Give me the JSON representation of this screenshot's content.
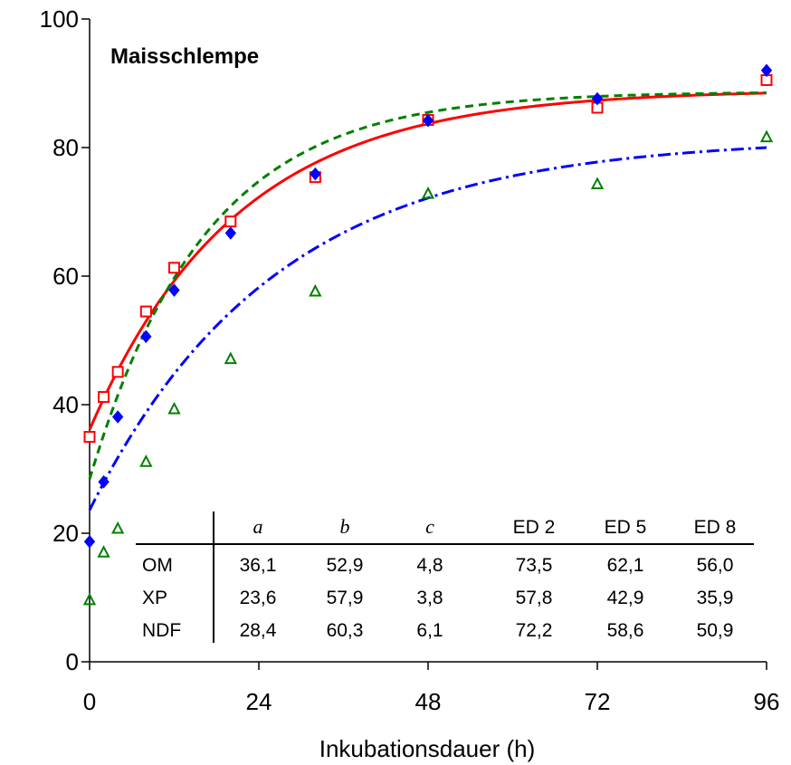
{
  "chart_data": {
    "type": "scatter",
    "title": "Maisschlempe",
    "xlabel": "Inkubationsdauer (h)",
    "ylabel": "",
    "xlim": [
      0,
      96
    ],
    "ylim": [
      0,
      100
    ],
    "xticks": [
      0,
      24,
      48,
      72,
      96
    ],
    "yticks": [
      0,
      20,
      40,
      60,
      80,
      100
    ],
    "grid": false,
    "series": [
      {
        "name": "OM",
        "color": "#ff0000",
        "marker": "square-open",
        "line_style": "solid",
        "points": [
          [
            0,
            35.0
          ],
          [
            2,
            41.2
          ],
          [
            4,
            45.1
          ],
          [
            8,
            54.5
          ],
          [
            12,
            61.3
          ],
          [
            20,
            68.5
          ],
          [
            32,
            75.4
          ],
          [
            48,
            84.3
          ],
          [
            72,
            86.2
          ],
          [
            96,
            90.5
          ]
        ],
        "fit": {
          "a": 36.1,
          "b": 52.9,
          "c": 4.8
        }
      },
      {
        "name": "XP",
        "color": "#0000ff",
        "marker": "diamond-filled",
        "line_style": "dash-dot",
        "points": [
          [
            0,
            18.7
          ],
          [
            2,
            28.0
          ],
          [
            4,
            38.1
          ],
          [
            8,
            50.6
          ],
          [
            12,
            57.8
          ],
          [
            20,
            66.7
          ],
          [
            32,
            75.9
          ],
          [
            48,
            84.2
          ],
          [
            72,
            87.6
          ],
          [
            96,
            92.0
          ]
        ],
        "fit": {
          "a": 23.6,
          "b": 57.9,
          "c": 3.8
        }
      },
      {
        "name": "NDF",
        "color": "#008000",
        "marker": "triangle-open",
        "line_style": "dashed",
        "points": [
          [
            0,
            9.6
          ],
          [
            2,
            17.0
          ],
          [
            4,
            20.7
          ],
          [
            8,
            31.1
          ],
          [
            12,
            39.3
          ],
          [
            20,
            47.1
          ],
          [
            32,
            57.6
          ],
          [
            48,
            72.8
          ],
          [
            72,
            74.3
          ],
          [
            96,
            81.6
          ]
        ],
        "fit": {
          "a": 28.4,
          "b": 60.3,
          "c": 6.1
        }
      }
    ],
    "table": {
      "headers": [
        "a",
        "b",
        "c",
        "ED 2",
        "ED 5",
        "ED 8"
      ],
      "rows": [
        {
          "label": "OM",
          "values": [
            "36,1",
            "52,9",
            "4,8",
            "73,5",
            "62,1",
            "56,0"
          ]
        },
        {
          "label": "XP",
          "values": [
            "23,6",
            "57,9",
            "3,8",
            "57,8",
            "42,9",
            "35,9"
          ]
        },
        {
          "label": "NDF",
          "values": [
            "28,4",
            "60,3",
            "6,1",
            "72,2",
            "58,6",
            "50,9"
          ]
        }
      ]
    }
  }
}
